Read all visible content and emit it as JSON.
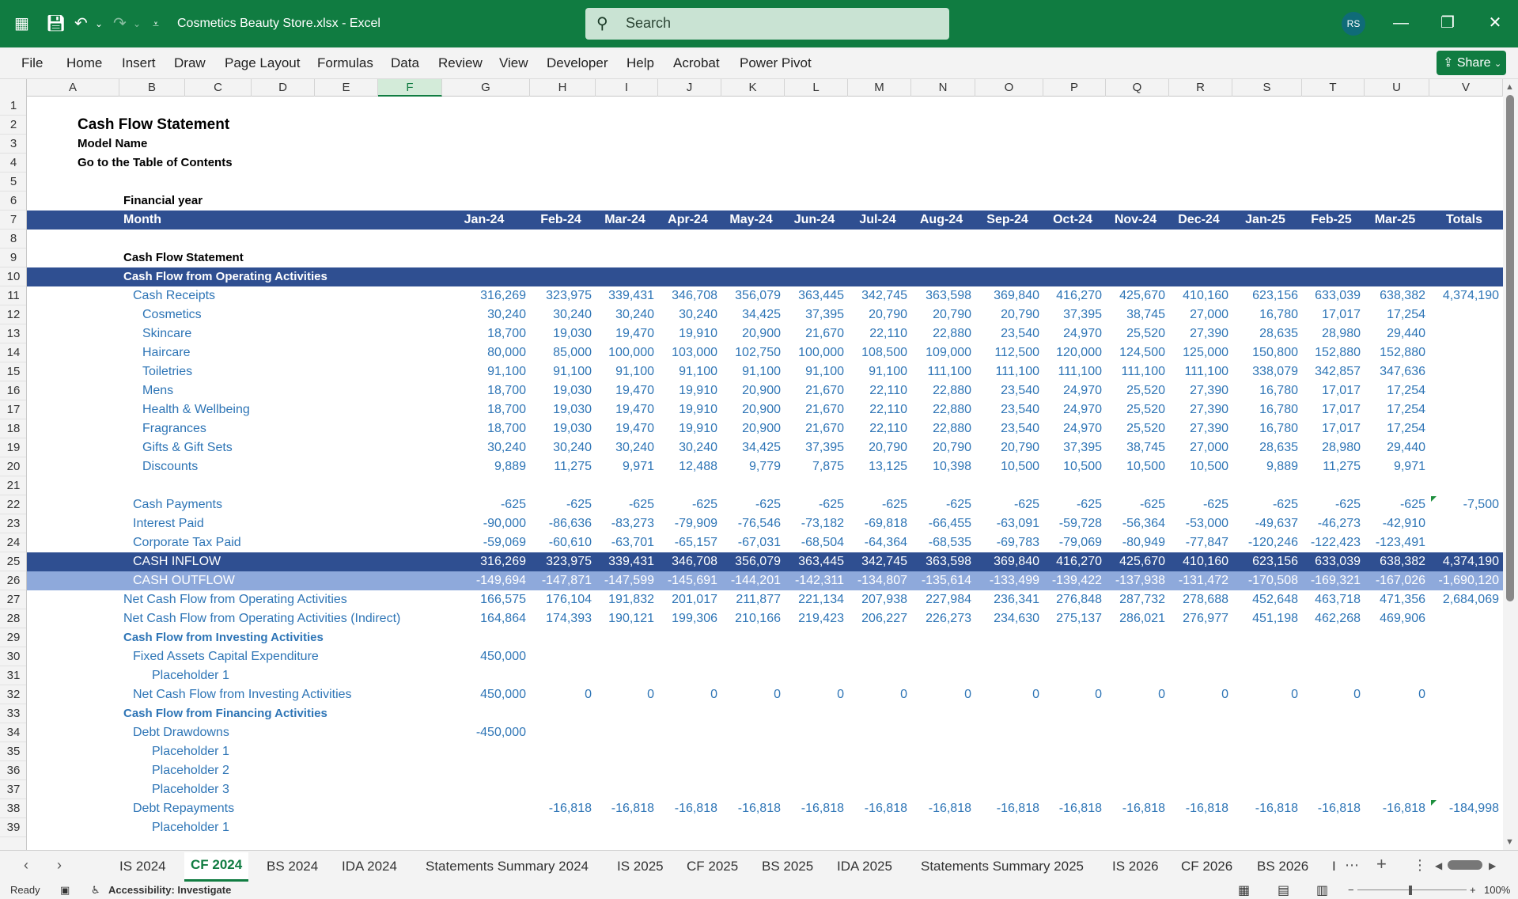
{
  "window": {
    "file_title": "Cosmetics Beauty Store.xlsx  -  Excel",
    "search_placeholder": "Search",
    "user_initials": "RS"
  },
  "ribbon": {
    "tabs": [
      "File",
      "Home",
      "Insert",
      "Draw",
      "Page Layout",
      "Formulas",
      "Data",
      "Review",
      "View",
      "Developer",
      "Help",
      "Acrobat",
      "Power Pivot"
    ],
    "share_label": "Share"
  },
  "columns": [
    "A",
    "B",
    "C",
    "D",
    "E",
    "F",
    "G",
    "H",
    "I",
    "J",
    "K",
    "L",
    "M",
    "N",
    "O",
    "P",
    "Q",
    "R",
    "S",
    "T",
    "U",
    "V"
  ],
  "selected_column": "F",
  "row_numbers": [
    "1",
    "2",
    "3",
    "4",
    "5",
    "6",
    "7",
    "8",
    "9",
    "10",
    "11",
    "12",
    "13",
    "14",
    "15",
    "16",
    "17",
    "18",
    "19",
    "20",
    "21",
    "22",
    "23",
    "24",
    "25",
    "26",
    "27",
    "28",
    "29",
    "30",
    "31",
    "32",
    "33",
    "34",
    "35",
    "36",
    "37",
    "38",
    "39"
  ],
  "sheet": {
    "title": "Cash Flow Statement",
    "model_name": "Model Name",
    "toc_link": "Go to the Table of Contents",
    "financial_year_label": "Financial year",
    "month_label": "Month",
    "months": [
      "Jan-24",
      "Feb-24",
      "Mar-24",
      "Apr-24",
      "May-24",
      "Jun-24",
      "Jul-24",
      "Aug-24",
      "Sep-24",
      "Oct-24",
      "Nov-24",
      "Dec-24",
      "Jan-25",
      "Feb-25",
      "Mar-25"
    ],
    "totals_label": "Totals",
    "section_title": "Cash Flow Statement",
    "operating_header": "Cash Flow from Operating Activities",
    "rows": {
      "r11": {
        "label": "Cash Receipts",
        "values": [
          "316,269",
          "323,975",
          "339,431",
          "346,708",
          "356,079",
          "363,445",
          "342,745",
          "363,598",
          "369,840",
          "416,270",
          "425,670",
          "410,160",
          "623,156",
          "633,039",
          "638,382"
        ],
        "total": "4,374,190"
      },
      "r12": {
        "label": "Cosmetics",
        "values": [
          "30,240",
          "30,240",
          "30,240",
          "30,240",
          "34,425",
          "37,395",
          "20,790",
          "20,790",
          "20,790",
          "37,395",
          "38,745",
          "27,000",
          "16,780",
          "17,017",
          "17,254"
        ],
        "total": ""
      },
      "r13": {
        "label": "Skincare",
        "values": [
          "18,700",
          "19,030",
          "19,470",
          "19,910",
          "20,900",
          "21,670",
          "22,110",
          "22,880",
          "23,540",
          "24,970",
          "25,520",
          "27,390",
          "28,635",
          "28,980",
          "29,440"
        ],
        "total": ""
      },
      "r14": {
        "label": "Haircare",
        "values": [
          "80,000",
          "85,000",
          "100,000",
          "103,000",
          "102,750",
          "100,000",
          "108,500",
          "109,000",
          "112,500",
          "120,000",
          "124,500",
          "125,000",
          "150,800",
          "152,880",
          "152,880"
        ],
        "total": ""
      },
      "r15": {
        "label": "Toiletries",
        "values": [
          "91,100",
          "91,100",
          "91,100",
          "91,100",
          "91,100",
          "91,100",
          "91,100",
          "111,100",
          "111,100",
          "111,100",
          "111,100",
          "111,100",
          "338,079",
          "342,857",
          "347,636"
        ],
        "total": ""
      },
      "r16": {
        "label": "Mens",
        "values": [
          "18,700",
          "19,030",
          "19,470",
          "19,910",
          "20,900",
          "21,670",
          "22,110",
          "22,880",
          "23,540",
          "24,970",
          "25,520",
          "27,390",
          "16,780",
          "17,017",
          "17,254"
        ],
        "total": ""
      },
      "r17": {
        "label": "Health & Wellbeing",
        "values": [
          "18,700",
          "19,030",
          "19,470",
          "19,910",
          "20,900",
          "21,670",
          "22,110",
          "22,880",
          "23,540",
          "24,970",
          "25,520",
          "27,390",
          "16,780",
          "17,017",
          "17,254"
        ],
        "total": ""
      },
      "r18": {
        "label": "Fragrances",
        "values": [
          "18,700",
          "19,030",
          "19,470",
          "19,910",
          "20,900",
          "21,670",
          "22,110",
          "22,880",
          "23,540",
          "24,970",
          "25,520",
          "27,390",
          "16,780",
          "17,017",
          "17,254"
        ],
        "total": ""
      },
      "r19": {
        "label": "Gifts & Gift Sets",
        "values": [
          "30,240",
          "30,240",
          "30,240",
          "30,240",
          "34,425",
          "37,395",
          "20,790",
          "20,790",
          "20,790",
          "37,395",
          "38,745",
          "27,000",
          "28,635",
          "28,980",
          "29,440"
        ],
        "total": ""
      },
      "r20": {
        "label": "Discounts",
        "values": [
          "9,889",
          "11,275",
          "9,971",
          "12,488",
          "9,779",
          "7,875",
          "13,125",
          "10,398",
          "10,500",
          "10,500",
          "10,500",
          "10,500",
          "9,889",
          "11,275",
          "9,971"
        ],
        "total": ""
      },
      "r22": {
        "label": "Cash Payments",
        "values": [
          "-625",
          "-625",
          "-625",
          "-625",
          "-625",
          "-625",
          "-625",
          "-625",
          "-625",
          "-625",
          "-625",
          "-625",
          "-625",
          "-625",
          "-625"
        ],
        "total": "-7,500"
      },
      "r23": {
        "label": "Interest Paid",
        "values": [
          "-90,000",
          "-86,636",
          "-83,273",
          "-79,909",
          "-76,546",
          "-73,182",
          "-69,818",
          "-66,455",
          "-63,091",
          "-59,728",
          "-56,364",
          "-53,000",
          "-49,637",
          "-46,273",
          "-42,910"
        ],
        "total": ""
      },
      "r24": {
        "label": "Corporate Tax Paid",
        "values": [
          "-59,069",
          "-60,610",
          "-63,701",
          "-65,157",
          "-67,031",
          "-68,504",
          "-64,364",
          "-68,535",
          "-69,783",
          "-79,069",
          "-80,949",
          "-77,847",
          "-120,246",
          "-122,423",
          "-123,491"
        ],
        "total": ""
      },
      "r25": {
        "label": "CASH INFLOW",
        "values": [
          "316,269",
          "323,975",
          "339,431",
          "346,708",
          "356,079",
          "363,445",
          "342,745",
          "363,598",
          "369,840",
          "416,270",
          "425,670",
          "410,160",
          "623,156",
          "633,039",
          "638,382"
        ],
        "total": "4,374,190"
      },
      "r26": {
        "label": "CASH OUTFLOW",
        "values": [
          "-149,694",
          "-147,871",
          "-147,599",
          "-145,691",
          "-144,201",
          "-142,311",
          "-134,807",
          "-135,614",
          "-133,499",
          "-139,422",
          "-137,938",
          "-131,472",
          "-170,508",
          "-169,321",
          "-167,026"
        ],
        "total": "-1,690,120"
      },
      "r27": {
        "label": "Net Cash Flow from Operating Activities",
        "values": [
          "166,575",
          "176,104",
          "191,832",
          "201,017",
          "211,877",
          "221,134",
          "207,938",
          "227,984",
          "236,341",
          "276,848",
          "287,732",
          "278,688",
          "452,648",
          "463,718",
          "471,356"
        ],
        "total": "2,684,069"
      },
      "r28": {
        "label": "Net Cash Flow from Operating Activities (Indirect)",
        "values": [
          "164,864",
          "174,393",
          "190,121",
          "199,306",
          "210,166",
          "219,423",
          "206,227",
          "226,273",
          "234,630",
          "275,137",
          "286,021",
          "276,977",
          "451,198",
          "462,268",
          "469,906"
        ],
        "total": ""
      },
      "r29": {
        "label": "Cash Flow from Investing Activities"
      },
      "r30": {
        "label": "Fixed Assets Capital Expenditure",
        "values": [
          "450,000",
          "",
          "",
          "",
          "",
          "",
          "",
          "",
          "",
          "",
          "",
          "",
          "",
          "",
          ""
        ],
        "total": ""
      },
      "r31": {
        "label": "Placeholder 1"
      },
      "r32": {
        "label": "Net Cash Flow from Investing Activities",
        "values": [
          "450,000",
          "0",
          "0",
          "0",
          "0",
          "0",
          "0",
          "0",
          "0",
          "0",
          "0",
          "0",
          "0",
          "0",
          "0"
        ],
        "total": ""
      },
      "r33": {
        "label": "Cash Flow from Financing Activities"
      },
      "r34": {
        "label": "Debt Drawdowns",
        "values": [
          "-450,000",
          "",
          "",
          "",
          "",
          "",
          "",
          "",
          "",
          "",
          "",
          "",
          "",
          "",
          ""
        ],
        "total": ""
      },
      "r35": {
        "label": "Placeholder 1"
      },
      "r36": {
        "label": "Placeholder 2"
      },
      "r37": {
        "label": "Placeholder 3"
      },
      "r38": {
        "label": "Debt Repayments",
        "values": [
          "",
          "-16,818",
          "-16,818",
          "-16,818",
          "-16,818",
          "-16,818",
          "-16,818",
          "-16,818",
          "-16,818",
          "-16,818",
          "-16,818",
          "-16,818",
          "-16,818",
          "-16,818",
          "-16,818"
        ],
        "total": "-184,998"
      },
      "r39": {
        "label": "Placeholder 1"
      }
    }
  },
  "sheet_tabs": [
    "IS 2024",
    "CF 2024",
    "BS 2024",
    "IDA 2024",
    "Statements Summary 2024",
    "IS 2025",
    "CF 2025",
    "BS 2025",
    "IDA 2025",
    "Statements Summary 2025",
    "IS 2026",
    "CF 2026",
    "BS 2026",
    "I"
  ],
  "active_sheet": "CF 2024",
  "status": {
    "ready": "Ready",
    "accessibility": "Accessibility: Investigate",
    "zoom": "100%"
  },
  "colors": {
    "excel_green": "#107c41",
    "header_blue": "#2f4f91",
    "outflow_blue": "#8ea9db",
    "value_blue": "#2e75b6"
  }
}
